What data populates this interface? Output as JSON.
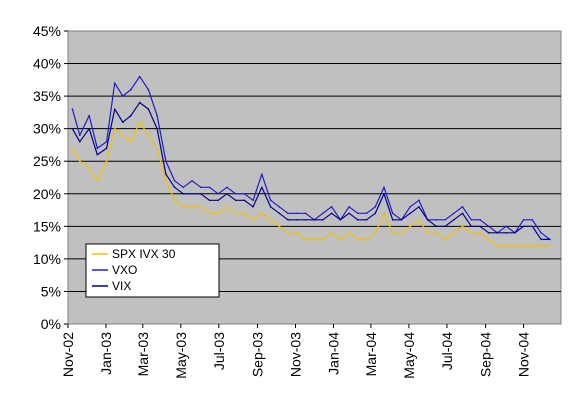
{
  "chart_data": {
    "type": "line",
    "title": "",
    "xlabel": "",
    "ylabel": "",
    "ylim": [
      0,
      45
    ],
    "y_format": "percent",
    "y_ticks": [
      0,
      5,
      10,
      15,
      20,
      25,
      30,
      35,
      40,
      45
    ],
    "y_tick_labels": [
      "0%",
      "5%",
      "10%",
      "15%",
      "20%",
      "25%",
      "30%",
      "35%",
      "40%",
      "45%"
    ],
    "x_tick_labels": [
      "Nov-02",
      "Jan-03",
      "Mar-03",
      "May-03",
      "Jul-03",
      "Sep-03",
      "Nov-03",
      "Jan-04",
      "Mar-04",
      "May-04",
      "Jul-04",
      "Sep-04",
      "Nov-04"
    ],
    "x_tick_dates": [
      "2002-11-01",
      "2003-01-01",
      "2003-03-01",
      "2003-05-01",
      "2003-07-01",
      "2003-09-01",
      "2003-11-01",
      "2004-01-01",
      "2004-03-01",
      "2004-05-01",
      "2004-07-01",
      "2004-09-01",
      "2004-11-01"
    ],
    "xlim": [
      "2002-11-01",
      "2004-12-31"
    ],
    "grid": true,
    "plot_background": "#c0c0c0",
    "legend_position": "lower-left",
    "series": [
      {
        "name": "SPX IVX 30",
        "color": "#f2c200",
        "x": [
          "2002-11-08",
          "2002-11-20",
          "2002-12-05",
          "2002-12-18",
          "2003-01-02",
          "2003-01-15",
          "2003-01-28",
          "2003-02-10",
          "2003-02-24",
          "2003-03-10",
          "2003-03-24",
          "2003-04-07",
          "2003-04-21",
          "2003-05-05",
          "2003-05-19",
          "2003-06-02",
          "2003-06-16",
          "2003-06-30",
          "2003-07-14",
          "2003-07-28",
          "2003-08-11",
          "2003-08-25",
          "2003-09-08",
          "2003-09-22",
          "2003-10-06",
          "2003-10-20",
          "2003-11-03",
          "2003-11-17",
          "2003-12-01",
          "2003-12-15",
          "2003-12-29",
          "2004-01-12",
          "2004-01-26",
          "2004-02-09",
          "2004-02-23",
          "2004-03-08",
          "2004-03-22",
          "2004-04-05",
          "2004-04-19",
          "2004-05-03",
          "2004-05-17",
          "2004-05-31",
          "2004-06-14",
          "2004-06-28",
          "2004-07-12",
          "2004-07-26",
          "2004-08-09",
          "2004-08-23",
          "2004-09-06",
          "2004-09-20",
          "2004-10-04",
          "2004-10-18",
          "2004-11-01",
          "2004-11-15",
          "2004-11-29",
          "2004-12-13"
        ],
        "values": [
          27,
          25,
          24,
          22,
          25,
          30,
          29,
          28,
          31,
          29,
          27,
          22,
          19,
          18,
          18,
          18,
          17,
          17,
          18,
          17,
          17,
          16,
          17,
          16,
          15,
          14,
          14,
          13,
          13,
          13,
          14,
          13,
          14,
          13,
          13,
          14,
          17,
          14,
          14,
          15,
          16,
          14,
          14,
          13,
          14,
          15,
          14,
          14,
          13,
          12,
          12,
          12,
          12,
          12,
          12,
          12
        ]
      },
      {
        "name": "VXO",
        "color": "#1c1cc8",
        "x": [
          "2002-11-08",
          "2002-11-20",
          "2002-12-05",
          "2002-12-18",
          "2003-01-02",
          "2003-01-15",
          "2003-01-28",
          "2003-02-10",
          "2003-02-24",
          "2003-03-10",
          "2003-03-24",
          "2003-04-07",
          "2003-04-21",
          "2003-05-05",
          "2003-05-19",
          "2003-06-02",
          "2003-06-16",
          "2003-06-30",
          "2003-07-14",
          "2003-07-28",
          "2003-08-11",
          "2003-08-25",
          "2003-09-08",
          "2003-09-22",
          "2003-10-06",
          "2003-10-20",
          "2003-11-03",
          "2003-11-17",
          "2003-12-01",
          "2003-12-15",
          "2003-12-29",
          "2004-01-12",
          "2004-01-26",
          "2004-02-09",
          "2004-02-23",
          "2004-03-08",
          "2004-03-22",
          "2004-04-05",
          "2004-04-19",
          "2004-05-03",
          "2004-05-17",
          "2004-05-31",
          "2004-06-14",
          "2004-06-28",
          "2004-07-12",
          "2004-07-26",
          "2004-08-09",
          "2004-08-23",
          "2004-09-06",
          "2004-09-20",
          "2004-10-04",
          "2004-10-18",
          "2004-11-01",
          "2004-11-15",
          "2004-11-29",
          "2004-12-13"
        ],
        "values": [
          33,
          29,
          32,
          27,
          28,
          37,
          35,
          36,
          38,
          36,
          32,
          25,
          22,
          21,
          22,
          21,
          21,
          20,
          21,
          20,
          20,
          19,
          23,
          19,
          18,
          17,
          17,
          17,
          16,
          17,
          18,
          16,
          18,
          17,
          17,
          18,
          21,
          17,
          16,
          18,
          19,
          16,
          16,
          16,
          17,
          18,
          16,
          16,
          15,
          14,
          15,
          14,
          16,
          16,
          14,
          13
        ]
      },
      {
        "name": "VIX",
        "color": "#00008c",
        "x": [
          "2002-11-08",
          "2002-11-20",
          "2002-12-05",
          "2002-12-18",
          "2003-01-02",
          "2003-01-15",
          "2003-01-28",
          "2003-02-10",
          "2003-02-24",
          "2003-03-10",
          "2003-03-24",
          "2003-04-07",
          "2003-04-21",
          "2003-05-05",
          "2003-05-19",
          "2003-06-02",
          "2003-06-16",
          "2003-06-30",
          "2003-07-14",
          "2003-07-28",
          "2003-08-11",
          "2003-08-25",
          "2003-09-08",
          "2003-09-22",
          "2003-10-06",
          "2003-10-20",
          "2003-11-03",
          "2003-11-17",
          "2003-12-01",
          "2003-12-15",
          "2003-12-29",
          "2004-01-12",
          "2004-01-26",
          "2004-02-09",
          "2004-02-23",
          "2004-03-08",
          "2004-03-22",
          "2004-04-05",
          "2004-04-19",
          "2004-05-03",
          "2004-05-17",
          "2004-05-31",
          "2004-06-14",
          "2004-06-28",
          "2004-07-12",
          "2004-07-26",
          "2004-08-09",
          "2004-08-23",
          "2004-09-06",
          "2004-09-20",
          "2004-10-04",
          "2004-10-18",
          "2004-11-01",
          "2004-11-15",
          "2004-11-29",
          "2004-12-13"
        ],
        "values": [
          30,
          28,
          30,
          26,
          27,
          33,
          31,
          32,
          34,
          33,
          30,
          23,
          21,
          20,
          20,
          20,
          19,
          19,
          20,
          19,
          19,
          18,
          21,
          18,
          17,
          16,
          16,
          16,
          16,
          16,
          17,
          16,
          17,
          16,
          16,
          17,
          20,
          16,
          16,
          17,
          18,
          16,
          15,
          15,
          16,
          17,
          15,
          15,
          14,
          14,
          14,
          14,
          15,
          15,
          13,
          13
        ]
      }
    ]
  }
}
